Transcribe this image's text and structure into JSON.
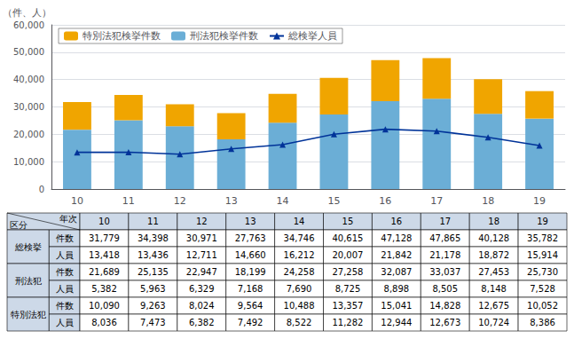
{
  "chart_data": {
    "type": "bar",
    "stacked": true,
    "ylabel": "（件、人）",
    "categories": [
      "10",
      "11",
      "12",
      "13",
      "14",
      "15",
      "16",
      "17",
      "18",
      "19"
    ],
    "series": [
      {
        "name": "刑法犯検挙件数",
        "type": "bar",
        "color": "#6baed6",
        "values": [
          21689,
          25135,
          22947,
          18199,
          24258,
          27258,
          32087,
          33037,
          27453,
          25730
        ]
      },
      {
        "name": "特別法犯検挙件数",
        "type": "bar",
        "color": "#f0a500",
        "values": [
          10090,
          9263,
          8024,
          9564,
          10488,
          13357,
          15041,
          14828,
          12675,
          10052
        ]
      },
      {
        "name": "総検挙人員",
        "type": "line",
        "marker": "triangle",
        "color": "#003399",
        "values": [
          13418,
          13436,
          12711,
          14660,
          16212,
          20007,
          21842,
          21178,
          18872,
          15914
        ]
      }
    ],
    "ylim": [
      0,
      60000
    ],
    "yticks": [
      0,
      {
        "value": 10000,
        "label": "10,000"
      },
      {
        "value": 20000,
        "label": "20,000"
      },
      {
        "value": 30000,
        "label": "30,000"
      },
      {
        "value": 40000,
        "label": "40,000"
      },
      {
        "value": 50000,
        "label": "50,000"
      },
      {
        "value": 60000,
        "label": "60,000"
      }
    ],
    "grid": true,
    "legend": "upper left",
    "table": {
      "header_color": "#cdd9e8",
      "corner": [
        "区分",
        "年次"
      ],
      "columns": [
        "10",
        "11",
        "12",
        "13",
        "14",
        "15",
        "16",
        "17",
        "18",
        "19"
      ],
      "groups": [
        "総検挙",
        "刑法犯",
        "特別法犯"
      ],
      "sublabels": [
        "件数",
        "人員",
        "件数",
        "人員",
        "件数",
        "人員"
      ],
      "cells": [
        [
          "31,779",
          "34,398",
          "30,971",
          "27,763",
          "34,746",
          "40,615",
          "47,128",
          "47,865",
          "40,128",
          "35,782"
        ],
        [
          "13,418",
          "13,436",
          "12,711",
          "14,660",
          "16,212",
          "20,007",
          "21,842",
          "21,178",
          "18,872",
          "15,914"
        ],
        [
          "21,689",
          "25,135",
          "22,947",
          "18,199",
          "24,258",
          "27,258",
          "32,087",
          "33,037",
          "27,453",
          "25,730"
        ],
        [
          "5,382",
          "5,963",
          "6,329",
          "7,168",
          "7,690",
          "8,725",
          "8,898",
          "8,505",
          "8,148",
          "7,528"
        ],
        [
          "10,090",
          "9,263",
          "8,024",
          "9,564",
          "10,488",
          "13,357",
          "15,041",
          "14,828",
          "12,675",
          "10,052"
        ],
        [
          "8,036",
          "7,473",
          "6,382",
          "7,492",
          "8,522",
          "11,282",
          "12,944",
          "12,673",
          "10,724",
          "8,386"
        ]
      ]
    }
  }
}
